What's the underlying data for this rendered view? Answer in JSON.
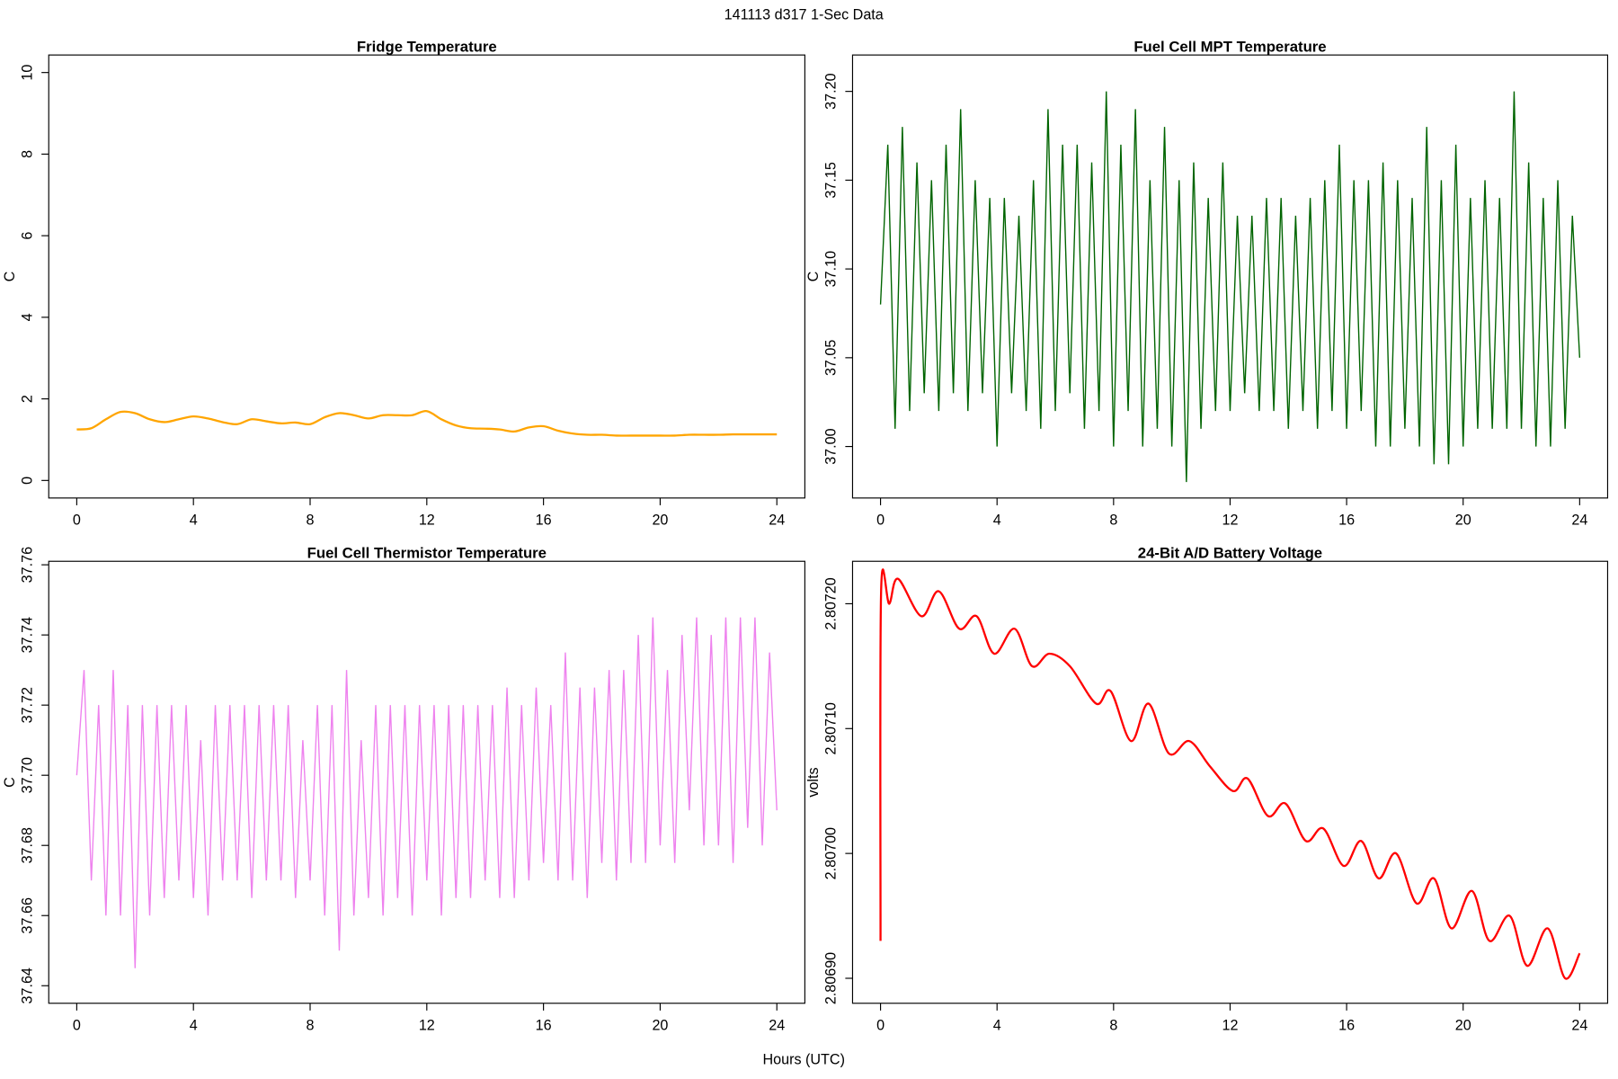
{
  "title": "141113   d317   1-Sec Data",
  "xlabel": "Hours (UTC)",
  "chart_data": [
    {
      "type": "line",
      "title": "Fridge Temperature",
      "ylabel": "C",
      "color": "#FFA500",
      "smooth": true,
      "xlim": [
        -0.96,
        24.96
      ],
      "xticks": [
        0,
        4,
        8,
        12,
        16,
        20,
        24
      ],
      "ylim": [
        -0.43,
        10.43
      ],
      "yticks": [
        0,
        2,
        4,
        6,
        8,
        10
      ],
      "x": [
        0,
        0.5,
        1,
        1.5,
        2,
        2.5,
        3,
        3.5,
        4,
        4.5,
        5,
        5.5,
        6,
        6.5,
        7,
        7.5,
        8,
        8.5,
        9,
        9.5,
        10,
        10.5,
        11,
        11.5,
        12,
        12.5,
        13,
        13.5,
        14,
        14.5,
        15,
        15.5,
        16,
        16.5,
        17,
        17.5,
        18,
        18.5,
        19,
        19.5,
        20,
        20.5,
        21,
        21.5,
        22,
        22.5,
        23,
        23.5,
        24
      ],
      "values": [
        1.25,
        1.28,
        1.5,
        1.68,
        1.65,
        1.5,
        1.43,
        1.5,
        1.57,
        1.52,
        1.43,
        1.38,
        1.5,
        1.45,
        1.4,
        1.42,
        1.38,
        1.55,
        1.65,
        1.6,
        1.52,
        1.6,
        1.6,
        1.6,
        1.7,
        1.5,
        1.35,
        1.28,
        1.27,
        1.25,
        1.2,
        1.3,
        1.33,
        1.22,
        1.15,
        1.12,
        1.12,
        1.1,
        1.1,
        1.1,
        1.1,
        1.1,
        1.12,
        1.12,
        1.12,
        1.13,
        1.13,
        1.13,
        1.13
      ]
    },
    {
      "type": "line",
      "title": "Fuel Cell MPT Temperature",
      "ylabel": "C",
      "color": "#006400",
      "smooth": false,
      "xlim": [
        -0.96,
        24.96
      ],
      "xticks": [
        0,
        4,
        8,
        12,
        16,
        20,
        24
      ],
      "ylim": [
        36.971,
        37.2205
      ],
      "yticks": [
        {
          "value": 37.0,
          "label": "37.00"
        },
        37.05,
        {
          "value": 37.1,
          "label": "37.10"
        },
        37.15,
        {
          "value": 37.2,
          "label": "37.20"
        }
      ],
      "x": [
        0,
        0.25,
        0.5,
        0.75,
        1,
        1.25,
        1.5,
        1.75,
        2,
        2.25,
        2.5,
        2.75,
        3,
        3.25,
        3.5,
        3.75,
        4,
        4.25,
        4.5,
        4.75,
        5,
        5.25,
        5.5,
        5.75,
        6,
        6.25,
        6.5,
        6.75,
        7,
        7.25,
        7.5,
        7.75,
        8,
        8.25,
        8.5,
        8.75,
        9,
        9.25,
        9.5,
        9.75,
        10,
        10.25,
        10.5,
        10.75,
        11,
        11.25,
        11.5,
        11.75,
        12,
        12.25,
        12.5,
        12.75,
        13,
        13.25,
        13.5,
        13.75,
        14,
        14.25,
        14.5,
        14.75,
        15,
        15.25,
        15.5,
        15.75,
        16,
        16.25,
        16.5,
        16.75,
        17,
        17.25,
        17.5,
        17.75,
        18,
        18.25,
        18.5,
        18.75,
        19,
        19.25,
        19.5,
        19.75,
        20,
        20.25,
        20.5,
        20.75,
        21,
        21.25,
        21.5,
        21.75,
        22,
        22.25,
        22.5,
        22.75,
        23,
        23.25,
        23.5,
        23.75,
        24
      ],
      "values": [
        37.08,
        37.17,
        37.01,
        37.18,
        37.02,
        37.16,
        37.03,
        37.15,
        37.02,
        37.17,
        37.03,
        37.19,
        37.02,
        37.15,
        37.03,
        37.14,
        37.0,
        37.14,
        37.03,
        37.13,
        37.02,
        37.15,
        37.01,
        37.19,
        37.02,
        37.17,
        37.03,
        37.17,
        37.01,
        37.16,
        37.02,
        37.2,
        37.0,
        37.17,
        37.02,
        37.19,
        37.0,
        37.15,
        37.01,
        37.18,
        37.0,
        37.15,
        36.98,
        37.16,
        37.01,
        37.14,
        37.02,
        37.16,
        37.02,
        37.13,
        37.03,
        37.13,
        37.02,
        37.14,
        37.02,
        37.14,
        37.01,
        37.13,
        37.02,
        37.14,
        37.01,
        37.15,
        37.02,
        37.17,
        37.01,
        37.15,
        37.02,
        37.15,
        37.0,
        37.16,
        37.0,
        37.15,
        37.01,
        37.14,
        37.0,
        37.18,
        36.99,
        37.15,
        36.99,
        37.17,
        37.0,
        37.14,
        37.01,
        37.15,
        37.01,
        37.14,
        37.01,
        37.2,
        37.01,
        37.16,
        37.0,
        37.14,
        37.0,
        37.15,
        37.01,
        37.13,
        37.05
      ]
    },
    {
      "type": "line",
      "title": "Fuel Cell Thermistor Temperature",
      "ylabel": "C",
      "color": "#EE82EE",
      "smooth": false,
      "xlim": [
        -0.96,
        24.96
      ],
      "xticks": [
        0,
        4,
        8,
        12,
        16,
        20,
        24
      ],
      "ylim": [
        37.635,
        37.761
      ],
      "yticks": [
        37.64,
        37.66,
        37.68,
        {
          "value": 37.7,
          "label": "37.70"
        },
        37.72,
        37.74,
        37.76
      ],
      "x": [
        0,
        0.25,
        0.5,
        0.75,
        1,
        1.25,
        1.5,
        1.75,
        2,
        2.25,
        2.5,
        2.75,
        3,
        3.25,
        3.5,
        3.75,
        4,
        4.25,
        4.5,
        4.75,
        5,
        5.25,
        5.5,
        5.75,
        6,
        6.25,
        6.5,
        6.75,
        7,
        7.25,
        7.5,
        7.75,
        8,
        8.25,
        8.5,
        8.75,
        9,
        9.25,
        9.5,
        9.75,
        10,
        10.25,
        10.5,
        10.75,
        11,
        11.25,
        11.5,
        11.75,
        12,
        12.25,
        12.5,
        12.75,
        13,
        13.25,
        13.5,
        13.75,
        14,
        14.25,
        14.5,
        14.75,
        15,
        15.25,
        15.5,
        15.75,
        16,
        16.25,
        16.5,
        16.75,
        17,
        17.25,
        17.5,
        17.75,
        18,
        18.25,
        18.5,
        18.75,
        19,
        19.25,
        19.5,
        19.75,
        20,
        20.25,
        20.5,
        20.75,
        21,
        21.25,
        21.5,
        21.75,
        22,
        22.25,
        22.5,
        22.75,
        23,
        23.25,
        23.5,
        23.75,
        24
      ],
      "values": [
        37.7,
        37.73,
        37.67,
        37.72,
        37.66,
        37.73,
        37.66,
        37.72,
        37.645,
        37.72,
        37.66,
        37.72,
        37.665,
        37.72,
        37.67,
        37.72,
        37.665,
        37.71,
        37.66,
        37.72,
        37.67,
        37.72,
        37.67,
        37.72,
        37.665,
        37.72,
        37.67,
        37.72,
        37.67,
        37.72,
        37.665,
        37.71,
        37.67,
        37.72,
        37.66,
        37.72,
        37.65,
        37.73,
        37.66,
        37.71,
        37.665,
        37.72,
        37.66,
        37.72,
        37.665,
        37.72,
        37.66,
        37.72,
        37.67,
        37.72,
        37.66,
        37.72,
        37.665,
        37.72,
        37.665,
        37.72,
        37.67,
        37.72,
        37.665,
        37.725,
        37.665,
        37.72,
        37.67,
        37.725,
        37.675,
        37.72,
        37.67,
        37.735,
        37.67,
        37.725,
        37.665,
        37.725,
        37.675,
        37.73,
        37.67,
        37.73,
        37.675,
        37.74,
        37.675,
        37.745,
        37.68,
        37.73,
        37.675,
        37.74,
        37.69,
        37.745,
        37.68,
        37.74,
        37.68,
        37.745,
        37.675,
        37.745,
        37.685,
        37.745,
        37.68,
        37.735,
        37.69
      ]
    },
    {
      "type": "line",
      "title": "24-Bit A/D Battery Voltage",
      "ylabel": "volts",
      "color": "#FF0000",
      "smooth": true,
      "xlim": [
        -0.96,
        24.96
      ],
      "xticks": [
        0,
        4,
        8,
        12,
        16,
        20,
        24
      ],
      "ylim": [
        2.80688,
        2.807234
      ],
      "yticks": [
        {
          "value": 2.8069,
          "label": "2.80690"
        },
        {
          "value": 2.807,
          "label": "2.80700"
        },
        {
          "value": 2.8071,
          "label": "2.80710"
        },
        {
          "value": 2.8072,
          "label": "2.80720"
        }
      ],
      "x": [
        0,
        0.02,
        0.3,
        0.6,
        1.4,
        2.0,
        2.7,
        3.3,
        3.9,
        4.6,
        5.2,
        5.8,
        6.5,
        7.4,
        7.9,
        8.6,
        9.2,
        9.9,
        10.6,
        11.3,
        12.1,
        12.6,
        13.3,
        13.9,
        14.6,
        15.2,
        15.9,
        16.5,
        17.1,
        17.7,
        18.4,
        19.0,
        19.6,
        20.3,
        20.9,
        21.6,
        22.2,
        22.9,
        23.5,
        24
      ],
      "values": [
        2.80693,
        2.80721,
        2.8072,
        2.80722,
        2.80719,
        2.80721,
        2.80718,
        2.80719,
        2.80716,
        2.80718,
        2.80715,
        2.80716,
        2.80715,
        2.80712,
        2.80713,
        2.80709,
        2.80712,
        2.80708,
        2.80709,
        2.80707,
        2.80705,
        2.80706,
        2.80703,
        2.80704,
        2.80701,
        2.80702,
        2.80699,
        2.80701,
        2.80698,
        2.807,
        2.80696,
        2.80698,
        2.80694,
        2.80697,
        2.80693,
        2.80695,
        2.80691,
        2.80694,
        2.8069,
        2.80692
      ]
    }
  ]
}
